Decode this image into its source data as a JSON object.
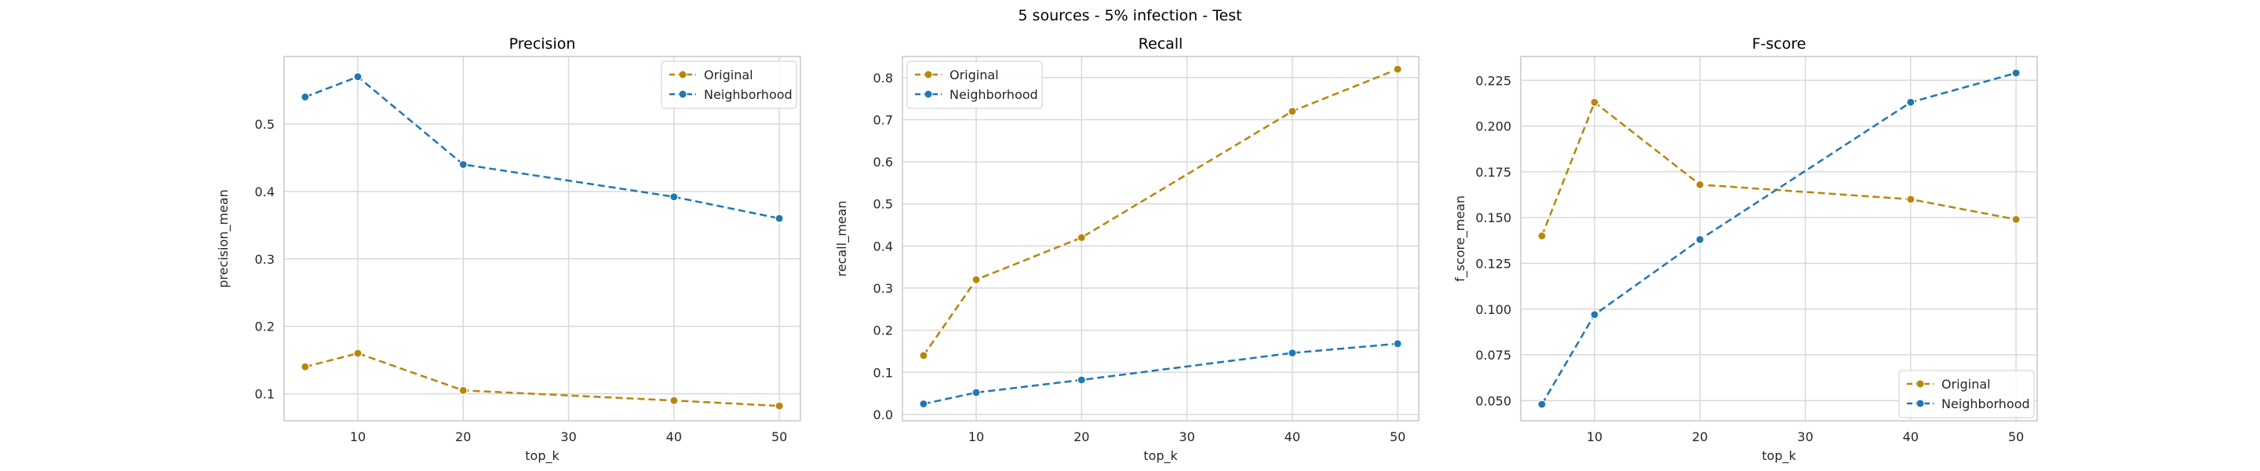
{
  "figure": {
    "suptitle": "5 sources - 5% infection - Test"
  },
  "colors": {
    "Original": "#b8860b",
    "Neighborhood": "#1f77b4",
    "grid": "#d9d9d9",
    "frame": "#c8c8c8"
  },
  "chart_data": [
    {
      "type": "line",
      "title": "Precision",
      "xlabel": "top_k",
      "ylabel": "precision_mean",
      "x": [
        5,
        10,
        20,
        40,
        50
      ],
      "xticks": [
        10,
        20,
        30,
        40,
        50
      ],
      "xlim": [
        3,
        52
      ],
      "yticks": [
        0.1,
        0.2,
        0.3,
        0.4,
        0.5
      ],
      "ylim": [
        0.06,
        0.6
      ],
      "tick_decimals": 1,
      "grid": true,
      "legend": "top-right",
      "series": [
        {
          "name": "Original",
          "values": [
            0.14,
            0.16,
            0.105,
            0.09,
            0.082
          ]
        },
        {
          "name": "Neighborhood",
          "values": [
            0.54,
            0.57,
            0.44,
            0.392,
            0.36
          ]
        }
      ]
    },
    {
      "type": "line",
      "title": "Recall",
      "xlabel": "top_k",
      "ylabel": "recall_mean",
      "x": [
        5,
        10,
        20,
        40,
        50
      ],
      "xticks": [
        10,
        20,
        30,
        40,
        50
      ],
      "xlim": [
        3,
        52
      ],
      "yticks": [
        0.0,
        0.1,
        0.2,
        0.3,
        0.4,
        0.5,
        0.6,
        0.7,
        0.8
      ],
      "ylim": [
        -0.015,
        0.85
      ],
      "tick_decimals": 1,
      "grid": true,
      "legend": "top-left",
      "series": [
        {
          "name": "Original",
          "values": [
            0.14,
            0.32,
            0.42,
            0.72,
            0.82
          ]
        },
        {
          "name": "Neighborhood",
          "values": [
            0.025,
            0.052,
            0.082,
            0.146,
            0.168
          ]
        }
      ]
    },
    {
      "type": "line",
      "title": "F-score",
      "xlabel": "top_k",
      "ylabel": "f_score_mean",
      "x": [
        5,
        10,
        20,
        40,
        50
      ],
      "xticks": [
        10,
        20,
        30,
        40,
        50
      ],
      "xlim": [
        3,
        52
      ],
      "yticks": [
        0.05,
        0.075,
        0.1,
        0.125,
        0.15,
        0.175,
        0.2,
        0.225
      ],
      "ylim": [
        0.039,
        0.238
      ],
      "tick_decimals": 3,
      "grid": true,
      "legend": "bottom-right",
      "series": [
        {
          "name": "Original",
          "values": [
            0.14,
            0.213,
            0.168,
            0.16,
            0.149
          ]
        },
        {
          "name": "Neighborhood",
          "values": [
            0.048,
            0.097,
            0.138,
            0.213,
            0.229
          ]
        }
      ]
    }
  ]
}
